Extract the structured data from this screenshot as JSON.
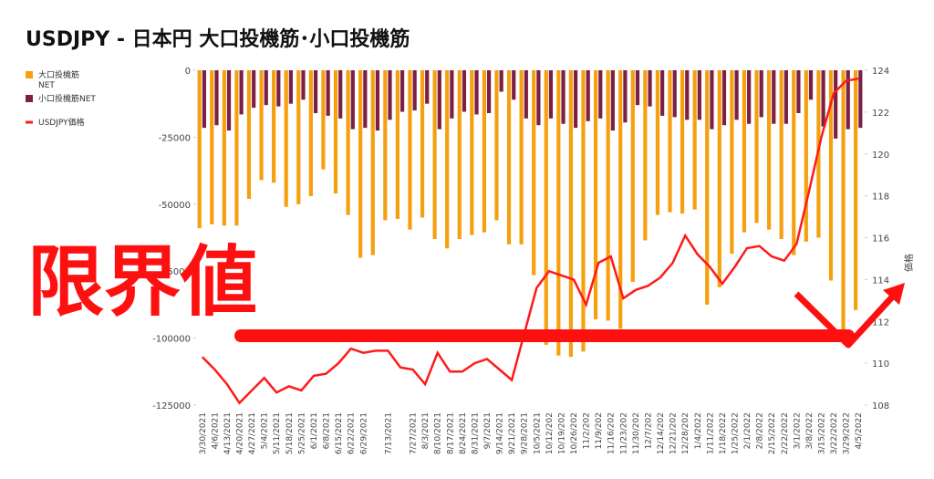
{
  "chart_data": {
    "type": "bar_line",
    "title": "USDJPY - 日本円 大口投機筋･小口投機筋",
    "annotation": "限界値",
    "y2_label": "価格",
    "categories": [
      "3/30/2021",
      "4/6/2021",
      "4/13/2021",
      "4/20/2021",
      "4/27/2021",
      "5/4/2021",
      "5/11/2021",
      "5/18/2021",
      "5/25/2021",
      "6/1/2021",
      "6/8/2021",
      "6/15/2021",
      "6/22/2021",
      "6/29/2021",
      null,
      "7/13/2021",
      null,
      "7/27/2021",
      "8/3/2021",
      "8/10/2021",
      "8/17/2021",
      "8/24/2021",
      "8/31/2021",
      "9/7/2021",
      "9/14/2021",
      "9/21/2021",
      "9/28/2021",
      "10/5/2021",
      "10/12/202",
      "10/19/202",
      "10/26/202",
      "11/2/202",
      "11/9/202",
      "11/16/202",
      "11/23/202",
      "11/30/202",
      "12/7/202",
      "12/14/202",
      "12/21/202",
      "12/28/202",
      "1/4/2022",
      "1/11/2022",
      "1/18/2022",
      "1/25/2022",
      "2/1/2022",
      "2/8/2022",
      "2/15/2022",
      "2/22/2022",
      "3/1/2022",
      "3/8/2022",
      "3/15/2022",
      "3/22/2022",
      "3/29/2022",
      "4/5/2022"
    ],
    "series": [
      {
        "name": "大口投機筋NET",
        "color": "#f5a00f",
        "values": [
          -59000,
          -57500,
          -58000,
          -58000,
          -48000,
          -41000,
          -42000,
          -51000,
          -50000,
          -47000,
          -37000,
          -46000,
          -54000,
          -70000,
          -69000,
          -56000,
          -55500,
          -59500,
          -55000,
          -63000,
          -66500,
          -63000,
          -61500,
          -60500,
          -56000,
          -65000,
          -65000,
          -76500,
          -102500,
          -106500,
          -107000,
          -105000,
          -93000,
          -93500,
          -96500,
          -79000,
          -63500,
          -54000,
          -53000,
          -53500,
          -52000,
          -87500,
          -81000,
          -68500,
          -60500,
          -57000,
          -59500,
          -63000,
          -69000,
          -64000,
          -62500,
          -78500,
          -99500,
          -89500
        ]
      },
      {
        "name": "小口投機筋NET",
        "color": "#7b1f45",
        "values": [
          -21500,
          -20500,
          -22500,
          -16500,
          -14000,
          -13000,
          -13500,
          -12500,
          -11000,
          -16000,
          -17000,
          -18000,
          -22000,
          -21500,
          -22500,
          -18500,
          -15500,
          -15000,
          -12500,
          -22000,
          -18000,
          -15500,
          -16500,
          -16000,
          -8000,
          -11000,
          -18000,
          -20500,
          -18000,
          -20000,
          -21500,
          -19000,
          -18000,
          -22500,
          -19500,
          -13000,
          -13500,
          -17000,
          -17500,
          -18500,
          -18500,
          -22000,
          -20500,
          -18500,
          -20000,
          -17500,
          -20000,
          -20000,
          -16000,
          -11000,
          -21000,
          -25500,
          -22000,
          -21500
        ]
      },
      {
        "name": "USDJPY価格",
        "color": "#ff1a1a",
        "axis": "y2",
        "values": [
          110.3,
          109.7,
          109.0,
          108.1,
          108.7,
          109.3,
          108.6,
          108.9,
          108.7,
          109.4,
          109.5,
          110.0,
          110.7,
          110.5,
          110.6,
          110.6,
          109.8,
          109.7,
          109.0,
          110.5,
          109.6,
          109.6,
          110.0,
          110.2,
          109.7,
          109.2,
          111.4,
          113.6,
          114.4,
          114.2,
          114.0,
          112.8,
          114.8,
          115.1,
          113.1,
          113.5,
          113.7,
          114.1,
          114.8,
          116.1,
          115.2,
          114.6,
          113.8,
          114.6,
          115.5,
          115.6,
          115.1,
          114.9,
          115.7,
          118.2,
          120.8,
          122.9,
          123.5,
          123.6
        ]
      }
    ],
    "ylim": [
      -125000,
      0
    ],
    "yticks": [
      0,
      -25000,
      -50000,
      -75000,
      -100000,
      -125000
    ],
    "y2lim": [
      108,
      124
    ],
    "y2ticks": [
      108,
      110,
      112,
      114,
      116,
      118,
      120,
      122,
      124
    ]
  }
}
